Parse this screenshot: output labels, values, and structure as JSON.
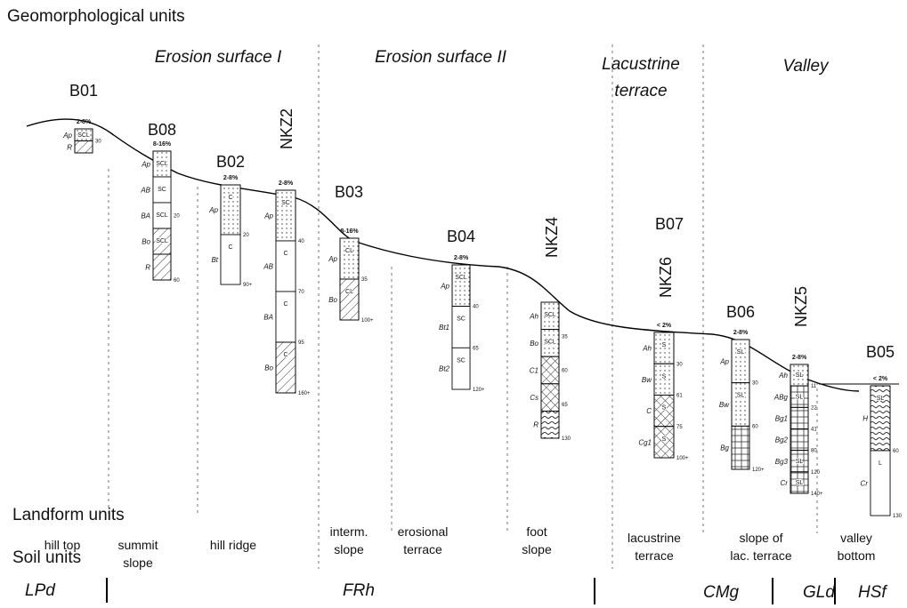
{
  "title": "Geomorphological units",
  "geo_units": [
    [
      "Erosion surface I"
    ],
    [
      "Erosion surface II"
    ],
    [
      "Lacustrine",
      "terrace"
    ],
    [
      "Valley"
    ]
  ],
  "landform_title": "Landform units",
  "landforms": [
    [
      "hill top"
    ],
    [
      "summit",
      "slope"
    ],
    [
      "hill ridge"
    ],
    [
      "interm.",
      "slope"
    ],
    [
      "erosional",
      "terrace"
    ],
    [
      "foot",
      "slope"
    ],
    [
      "lacustrine",
      "terrace"
    ],
    [
      "slope of",
      "lac. terrace"
    ],
    [
      "valley",
      "bottom"
    ]
  ],
  "soil_title": "Soil units",
  "soils": [
    "LPd",
    "FRh",
    "CMg",
    "GLd",
    "HSf"
  ],
  "profiles": [
    {
      "name": "B01",
      "slope": "2-8%",
      "horizons": [
        [
          "Ap",
          "SCL"
        ],
        [
          "R",
          ""
        ]
      ],
      "depths": [
        "30"
      ]
    },
    {
      "name": "B08",
      "slope": "8-16%",
      "horizons": [
        [
          "Ap",
          "SCL"
        ],
        [
          "AB",
          "SC"
        ],
        [
          "BA",
          "SCL"
        ],
        [
          "Bo",
          "SCL"
        ],
        [
          "R",
          ""
        ]
      ],
      "depths": [
        "20",
        "60"
      ]
    },
    {
      "name": "B02",
      "slope": "2-8%",
      "horizons": [
        [
          "Ap",
          "C"
        ],
        [
          "Bt",
          "C"
        ]
      ],
      "depths": [
        "20",
        "90+"
      ]
    },
    {
      "name": "NKZ2",
      "slope": "2-8%",
      "horizons": [
        [
          "Ap",
          "SC"
        ],
        [
          "AB",
          "C"
        ],
        [
          "BA",
          "C"
        ],
        [
          "Bo",
          "C"
        ]
      ],
      "depths": [
        "40",
        "70",
        "95",
        "160+"
      ]
    },
    {
      "name": "B03",
      "slope": "8-16%",
      "horizons": [
        [
          "Ap",
          "CL"
        ],
        [
          "Bo",
          "CL"
        ]
      ],
      "depths": [
        "35",
        "100+"
      ]
    },
    {
      "name": "B04",
      "slope": "2-8%",
      "horizons": [
        [
          "Ap",
          "SCL"
        ],
        [
          "Bt1",
          "SC"
        ],
        [
          "Bt2",
          "SC"
        ]
      ],
      "depths": [
        "40",
        "65",
        "120+"
      ]
    },
    {
      "name": "NKZ4",
      "horizons": [
        [
          "Ah",
          "SCL"
        ],
        [
          "Bo",
          "SCL"
        ],
        [
          "C1",
          ""
        ],
        [
          "Cs",
          ""
        ],
        [
          "R",
          ""
        ]
      ],
      "depths": [
        "35",
        "60",
        "65",
        "130"
      ]
    },
    {
      "name": "B07",
      "alt_name": "NKZ6",
      "slope": "< 2%",
      "horizons": [
        [
          "Ah",
          "S"
        ],
        [
          "Bw",
          "S"
        ],
        [
          "C",
          "S"
        ],
        [
          "Cg1",
          "S"
        ]
      ],
      "depths": [
        "30",
        "61",
        "75",
        "100+"
      ]
    },
    {
      "name": "B06",
      "slope": "2-8%",
      "horizons": [
        [
          "Ap",
          "SL"
        ],
        [
          "Bw",
          "SL"
        ],
        [
          "Bg",
          ""
        ]
      ],
      "depths": [
        "30",
        "60",
        "120+"
      ]
    },
    {
      "name": "NKZ5",
      "slope": "2-8%",
      "horizons": [
        [
          "Ah",
          "SL"
        ],
        [
          "ABg",
          "SL"
        ],
        [
          "Bg1",
          ""
        ],
        [
          "Bg2",
          ""
        ],
        [
          "Bg3",
          "SL"
        ],
        [
          "Cr",
          "SL"
        ]
      ],
      "depths": [
        "11",
        "22",
        "41",
        "80",
        "120",
        "140+"
      ]
    },
    {
      "name": "B05",
      "slope": "< 2%",
      "horizons": [
        [
          "H",
          "SL"
        ],
        [
          "Cr",
          "L"
        ]
      ],
      "depths": [
        "60",
        "130"
      ]
    }
  ]
}
